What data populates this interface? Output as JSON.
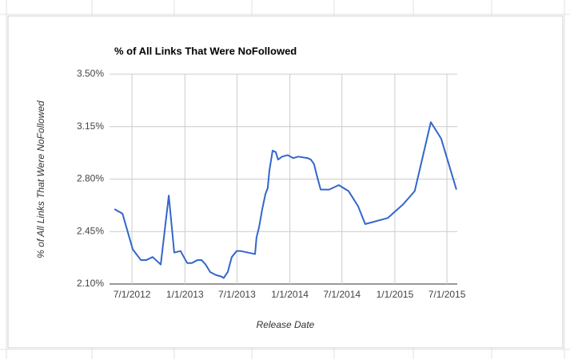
{
  "chart_data": {
    "type": "line",
    "title": "% of All Links That Were NoFollowed",
    "x_label": "Release Date",
    "y_label": "% of All Links That Were NoFollowed",
    "x": [
      "2012-05-01",
      "2012-05-29",
      "2012-07-04",
      "2012-08-01",
      "2012-08-20",
      "2012-09-11",
      "2012-10-09",
      "2012-11-06",
      "2012-11-25",
      "2012-12-17",
      "2013-01-09",
      "2013-01-25",
      "2013-02-14",
      "2013-02-28",
      "2013-03-14",
      "2013-03-30",
      "2013-04-19",
      "2013-05-08",
      "2013-05-16",
      "2013-05-30",
      "2013-06-13",
      "2013-06-30",
      "2013-07-14",
      "2013-08-08",
      "2013-09-02",
      "2013-09-07",
      "2013-09-16",
      "2013-09-27",
      "2013-10-08",
      "2013-10-16",
      "2013-10-22",
      "2013-11-02",
      "2013-11-13",
      "2013-11-21",
      "2013-12-05",
      "2013-12-25",
      "2014-01-13",
      "2014-01-30",
      "2014-03-04",
      "2014-03-15",
      "2014-03-26",
      "2014-04-04",
      "2014-04-18",
      "2014-05-18",
      "2014-06-20",
      "2014-07-24",
      "2014-08-26",
      "2014-09-20",
      "2014-12-07",
      "2015-01-29",
      "2015-03-11",
      "2015-05-06",
      "2015-06-11",
      "2015-08-03"
    ],
    "series": [
      {
        "name": "% of All Links That Were NoFollowed",
        "color": "#3366cc",
        "values": [
          2.6,
          2.57,
          2.33,
          2.26,
          2.26,
          2.28,
          2.23,
          2.69,
          2.31,
          2.32,
          2.24,
          2.24,
          2.26,
          2.26,
          2.23,
          2.18,
          2.16,
          2.15,
          2.14,
          2.18,
          2.28,
          2.32,
          2.32,
          2.31,
          2.3,
          2.41,
          2.48,
          2.6,
          2.7,
          2.74,
          2.86,
          2.99,
          2.98,
          2.93,
          2.95,
          2.96,
          2.94,
          2.95,
          2.94,
          2.93,
          2.9,
          2.83,
          2.73,
          2.73,
          2.76,
          2.72,
          2.62,
          2.5,
          2.54,
          2.63,
          2.72,
          3.18,
          3.07,
          2.73
        ]
      }
    ],
    "xlim": [
      "2012-04-14",
      "2015-08-06"
    ],
    "xticks": [
      {
        "value": "2012-07-01",
        "label": "7/1/2012"
      },
      {
        "value": "2013-01-01",
        "label": "1/1/2013"
      },
      {
        "value": "2013-07-01",
        "label": "7/1/2013"
      },
      {
        "value": "2014-01-01",
        "label": "1/1/2014"
      },
      {
        "value": "2014-07-01",
        "label": "7/1/2014"
      },
      {
        "value": "2015-01-01",
        "label": "1/1/2015"
      },
      {
        "value": "2015-07-01",
        "label": "7/1/2015"
      }
    ],
    "ylim": [
      2.1,
      3.5
    ],
    "yticks": [
      {
        "value": 2.1,
        "label": "2.10%"
      },
      {
        "value": 2.45,
        "label": "2.45%"
      },
      {
        "value": 2.8,
        "label": "2.80%"
      },
      {
        "value": 3.15,
        "label": "3.15%"
      },
      {
        "value": 3.5,
        "label": "3.50%"
      }
    ],
    "grid": true
  }
}
